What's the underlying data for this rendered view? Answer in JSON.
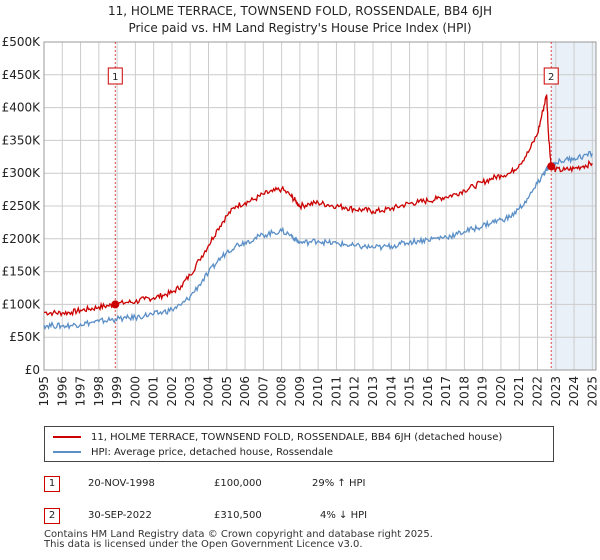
{
  "title_line1": "11, HOLME TERRACE, TOWNSEND FOLD, ROSSENDALE, BB4 6JH",
  "title_line2": "Price paid vs. HM Land Registry's House Price Index (HPI)",
  "colors": {
    "property": "#cc0000",
    "hpi": "#5b8fc7",
    "shade": "#dce6f2",
    "grid": "#cccccc"
  },
  "chart_data": {
    "type": "line",
    "ylabel": "",
    "xlabel": "",
    "ylim": [
      0,
      500000
    ],
    "xlim": [
      1995,
      2025.2
    ],
    "y_ticks": [
      {
        "value": 0,
        "label": "£0"
      },
      {
        "value": 50000,
        "label": "£50K"
      },
      {
        "value": 100000,
        "label": "£100K"
      },
      {
        "value": 150000,
        "label": "£150K"
      },
      {
        "value": 200000,
        "label": "£200K"
      },
      {
        "value": 250000,
        "label": "£250K"
      },
      {
        "value": 300000,
        "label": "£300K"
      },
      {
        "value": 350000,
        "label": "£350K"
      },
      {
        "value": 400000,
        "label": "£400K"
      },
      {
        "value": 450000,
        "label": "£450K"
      },
      {
        "value": 500000,
        "label": "£500K"
      }
    ],
    "x_ticks": [
      "1995",
      "1996",
      "1997",
      "1998",
      "1999",
      "2000",
      "2001",
      "2002",
      "2003",
      "2004",
      "2005",
      "2006",
      "2007",
      "2008",
      "2009",
      "2010",
      "2011",
      "2012",
      "2013",
      "2014",
      "2015",
      "2016",
      "2017",
      "2018",
      "2019",
      "2020",
      "2021",
      "2022",
      "2023",
      "2024",
      "2025"
    ],
    "series": [
      {
        "name": "11, HOLME TERRACE, TOWNSEND FOLD, ROSSENDALE, BB4 6JH (detached house)",
        "color": "#cc0000",
        "x": [
          1995.0,
          1995.5,
          1996.0,
          1996.5,
          1997.0,
          1997.5,
          1998.0,
          1998.5,
          1998.9,
          1999.5,
          2000.0,
          2000.5,
          2001.0,
          2001.5,
          2002.0,
          2002.5,
          2003.0,
          2003.5,
          2004.0,
          2004.5,
          2005.0,
          2005.5,
          2006.0,
          2006.5,
          2007.0,
          2007.5,
          2008.0,
          2008.5,
          2008.75,
          2009.0,
          2009.5,
          2010.0,
          2010.5,
          2011.0,
          2011.5,
          2012.0,
          2012.5,
          2013.0,
          2013.5,
          2014.0,
          2014.5,
          2015.0,
          2015.5,
          2016.0,
          2016.5,
          2017.0,
          2017.5,
          2018.0,
          2018.5,
          2019.0,
          2019.5,
          2020.0,
          2020.5,
          2021.0,
          2021.5,
          2022.0,
          2022.3,
          2022.5,
          2022.6,
          2022.75,
          2023.0,
          2023.5,
          2024.0,
          2024.5,
          2025.0
        ],
        "y": [
          88000,
          87000,
          87000,
          88000,
          91000,
          93000,
          96000,
          98000,
          100000,
          103000,
          104000,
          108000,
          110000,
          114000,
          118000,
          128000,
          145000,
          168000,
          190000,
          215000,
          235000,
          250000,
          255000,
          260000,
          268000,
          272000,
          276000,
          266000,
          258000,
          250000,
          253000,
          255000,
          252000,
          250000,
          248000,
          245000,
          244000,
          242000,
          243000,
          246000,
          250000,
          254000,
          256000,
          258000,
          261000,
          264000,
          268000,
          274000,
          280000,
          286000,
          292000,
          297000,
          300000,
          313000,
          332000,
          360000,
          396000,
          420000,
          360000,
          310500,
          305000,
          305000,
          307000,
          311000,
          315000
        ]
      },
      {
        "name": "HPI: Average price, detached house, Rossendale",
        "color": "#5b8fc7",
        "x": [
          1995.0,
          1995.5,
          1996.0,
          1996.5,
          1997.0,
          1997.5,
          1998.0,
          1998.5,
          1998.9,
          1999.5,
          2000.0,
          2000.5,
          2001.0,
          2001.5,
          2002.0,
          2002.5,
          2003.0,
          2003.5,
          2004.0,
          2004.5,
          2005.0,
          2005.5,
          2006.0,
          2006.5,
          2007.0,
          2007.5,
          2008.0,
          2008.5,
          2008.75,
          2009.0,
          2009.5,
          2010.0,
          2010.5,
          2011.0,
          2011.5,
          2012.0,
          2012.5,
          2013.0,
          2013.5,
          2014.0,
          2014.5,
          2015.0,
          2015.5,
          2016.0,
          2016.5,
          2017.0,
          2017.5,
          2018.0,
          2018.5,
          2019.0,
          2019.5,
          2020.0,
          2020.5,
          2021.0,
          2021.5,
          2022.0,
          2022.3,
          2022.5,
          2022.6,
          2022.75,
          2023.0,
          2023.5,
          2024.0,
          2024.5,
          2025.0
        ],
        "y": [
          68000,
          68000,
          67000,
          68000,
          70000,
          72000,
          74000,
          76000,
          77500,
          79000,
          80000,
          83000,
          85000,
          88000,
          92000,
          99000,
          112000,
          130000,
          148000,
          166000,
          180000,
          190000,
          195000,
          200000,
          206000,
          209000,
          212000,
          206000,
          199000,
          194000,
          195000,
          197000,
          194000,
          193000,
          191000,
          189000,
          188000,
          187000,
          187000,
          189000,
          192000,
          195000,
          197000,
          199000,
          201000,
          203000,
          206000,
          211000,
          215000,
          220000,
          225000,
          229000,
          233000,
          246000,
          262000,
          284000,
          298000,
          305000,
          309000,
          312000,
          316000,
          320000,
          323000,
          326000,
          330000
        ]
      }
    ],
    "markers": [
      {
        "label": "1",
        "x": 1998.9,
        "y": 100000
      },
      {
        "label": "2",
        "x": 2022.75,
        "y": 310500
      }
    ]
  },
  "legend": {
    "property_label": "11, HOLME TERRACE, TOWNSEND FOLD, ROSSENDALE, BB4 6JH (detached house)",
    "hpi_label": "HPI: Average price, detached house, Rossendale"
  },
  "transactions": [
    {
      "badge": "1",
      "date": "20-NOV-1998",
      "price": "£100,000",
      "hpi_delta": "29% ↑ HPI"
    },
    {
      "badge": "2",
      "date": "30-SEP-2022",
      "price": "£310,500",
      "hpi_delta": "4% ↓ HPI"
    }
  ],
  "footer": {
    "line1": "Contains HM Land Registry data © Crown copyright and database right 2025.",
    "line2": "This data is licensed under the Open Government Licence v3.0."
  }
}
